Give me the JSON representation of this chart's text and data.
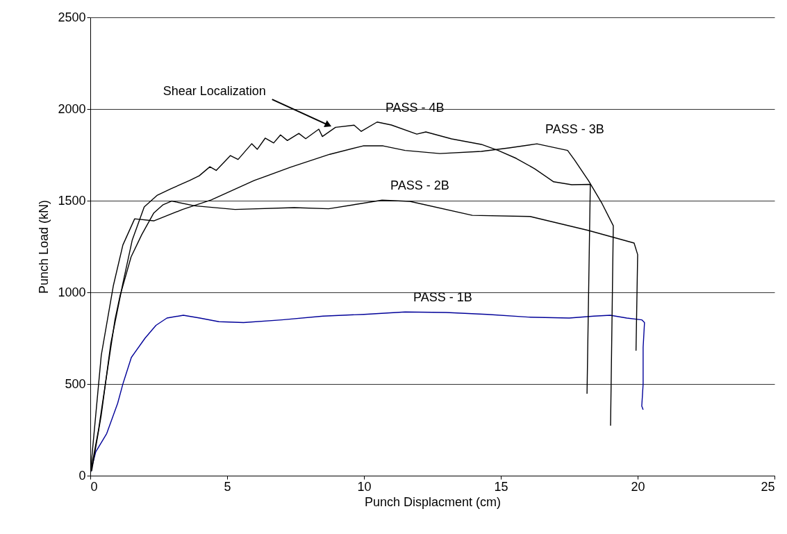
{
  "chart_data": {
    "type": "line",
    "xlabel": "Punch Displacment (cm)",
    "ylabel": "Punch Load (kN)",
    "xlim": [
      0,
      25
    ],
    "xticks": [
      0,
      5,
      10,
      15,
      20,
      25
    ],
    "ylim": [
      0,
      2500
    ],
    "yticks": [
      0,
      500,
      {
        "value": 1000,
        "label": "1000"
      },
      {
        "value": 1500,
        "label": "1500"
      },
      {
        "value": 2000,
        "label": "2000"
      },
      {
        "value": 2500,
        "label": "2500"
      }
    ],
    "grid": "y",
    "legend": false,
    "marker": "none",
    "line_style": "solid",
    "annotations": [
      {
        "text": "Shear Localization",
        "x": 8.8,
        "y": 1905
      }
    ],
    "series": [
      {
        "name": "PASS - 1B",
        "color": "#000099",
        "x": [
          0,
          0.2,
          0.6,
          1.0,
          1.2,
          1.5,
          2.0,
          2.4,
          2.8,
          3.4,
          4.0,
          4.7,
          5.6,
          7,
          8.5,
          10,
          11.5,
          13,
          14.5,
          16,
          17.5,
          18.4,
          19,
          19.6,
          20.15,
          20.25,
          20.2,
          20.2,
          20.15,
          20.2
        ],
        "values": [
          15,
          130,
          230,
          395,
          505,
          645,
          750,
          820,
          860,
          875,
          860,
          840,
          835,
          850,
          870,
          880,
          893,
          890,
          880,
          865,
          860,
          870,
          875,
          860,
          850,
          835,
          700,
          500,
          380,
          360
        ]
      },
      {
        "name": "PASS - 2B",
        "color": "#000000",
        "x": [
          0,
          0.3,
          0.6,
          0.9,
          1.09,
          1.49,
          1.88,
          2.32,
          2.66,
          2.97,
          3.81,
          5.29,
          7.45,
          8.71,
          10.66,
          11.68,
          13.96,
          16.07,
          18.19,
          19.87,
          20.0,
          19.94
        ],
        "values": [
          10,
          250,
          550,
          850,
          983,
          1193,
          1315,
          1433,
          1478,
          1498,
          1472,
          1452,
          1462,
          1456,
          1503,
          1496,
          1420,
          1414,
          1338,
          1269,
          1206,
          682
        ]
      },
      {
        "name": "PASS - 3B",
        "color": "#000000",
        "x": [
          0,
          0.4,
          0.84,
          1.19,
          1.62,
          2.32,
          3.37,
          4.42,
          5.99,
          7.31,
          8.75,
          9.97,
          10.7,
          11.5,
          12.77,
          14.29,
          15.3,
          16.32,
          17.44,
          17.69,
          18.2,
          18.7,
          19.11,
          19.01
        ],
        "values": [
          10,
          656,
          1035,
          1258,
          1401,
          1390,
          1452,
          1504,
          1610,
          1682,
          1753,
          1799,
          1799,
          1774,
          1757,
          1769,
          1788,
          1810,
          1774,
          1723,
          1610,
          1484,
          1363,
          273
        ]
      },
      {
        "name": "PASS - 4B",
        "color": "#000000",
        "x": [
          0.05,
          0.4,
          0.75,
          1.19,
          1.53,
          1.97,
          2.45,
          2.93,
          3.63,
          3.98,
          4.37,
          4.6,
          5.12,
          5.4,
          5.9,
          6.1,
          6.39,
          6.7,
          6.95,
          7.2,
          7.62,
          7.87,
          8.35,
          8.48,
          8.96,
          9.64,
          9.9,
          10.48,
          11.0,
          11.93,
          12.26,
          13.2,
          14.29,
          14.9,
          15.56,
          16.24,
          16.93,
          17.59,
          18.27,
          18.15
        ],
        "values": [
          25,
          330,
          722,
          1049,
          1284,
          1466,
          1530,
          1564,
          1610,
          1636,
          1685,
          1665,
          1746,
          1725,
          1811,
          1780,
          1841,
          1815,
          1859,
          1828,
          1867,
          1838,
          1890,
          1850,
          1900,
          1912,
          1878,
          1929,
          1913,
          1863,
          1875,
          1837,
          1807,
          1774,
          1731,
          1674,
          1603,
          1587,
          1589,
          447
        ]
      }
    ]
  }
}
